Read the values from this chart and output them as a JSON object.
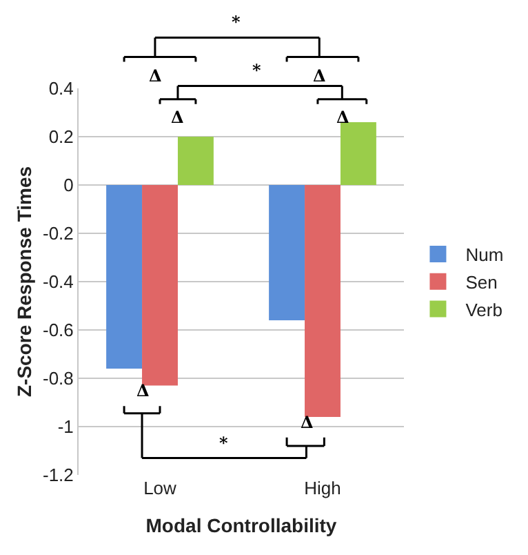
{
  "chart_data": {
    "type": "bar",
    "xlabel": "Modal Controllability",
    "ylabel": "Z-Score Response Times",
    "categories": [
      "Low",
      "High"
    ],
    "series": [
      {
        "name": "Num",
        "color": "#5b8fd9",
        "values": [
          -0.76,
          -0.56
        ]
      },
      {
        "name": "Sen",
        "color": "#e06666",
        "values": [
          -0.83,
          -0.96
        ]
      },
      {
        "name": "Verb",
        "color": "#9acd4a",
        "values": [
          0.2,
          0.26
        ]
      }
    ],
    "ylim": [
      -1.2,
      0.4
    ],
    "yticks": [
      -1.2,
      -1,
      -0.8,
      -0.6,
      -0.4,
      -0.2,
      0,
      0.2,
      0.4
    ],
    "grid": "y",
    "legend": "right",
    "annotations": [
      "Δ",
      "Δ",
      "*",
      "Δ",
      "Δ",
      "*",
      "Δ",
      "Δ",
      "*"
    ]
  }
}
